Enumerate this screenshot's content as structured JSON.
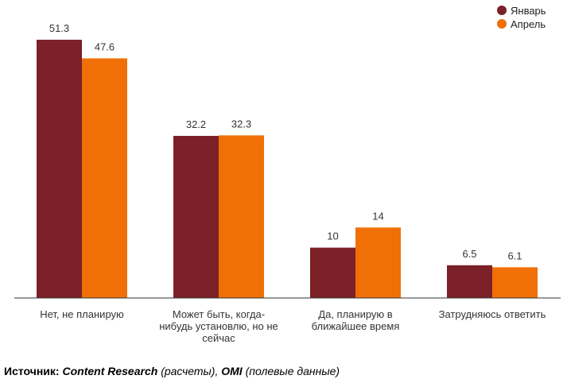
{
  "chart_data": {
    "type": "bar",
    "categories": [
      [
        "Нет, не планирую"
      ],
      [
        "Может быть, когда-",
        "нибудь установлю, но не",
        "сейчас"
      ],
      [
        "Да, планирую в",
        "ближайшее время"
      ],
      [
        "Затрудняюсь ответить"
      ]
    ],
    "series": [
      {
        "name": "Январь",
        "color": "#7b2127",
        "values": [
          51.3,
          32.2,
          10,
          6.5
        ]
      },
      {
        "name": "Апрель",
        "color": "#f07007",
        "values": [
          47.6,
          32.3,
          14,
          6.1
        ]
      }
    ],
    "value_labels": [
      [
        "51.3",
        "32.2",
        "10",
        "6.5"
      ],
      [
        "47.6",
        "32.3",
        "14",
        "6.1"
      ]
    ],
    "ylim": [
      0,
      55
    ],
    "grid": false,
    "legend_position": "top-right"
  },
  "source": {
    "label": "Источник:",
    "org1": "Content Research",
    "note1": "(расчеты),",
    "org2": "OMI",
    "note2": "(полевые данные)"
  }
}
